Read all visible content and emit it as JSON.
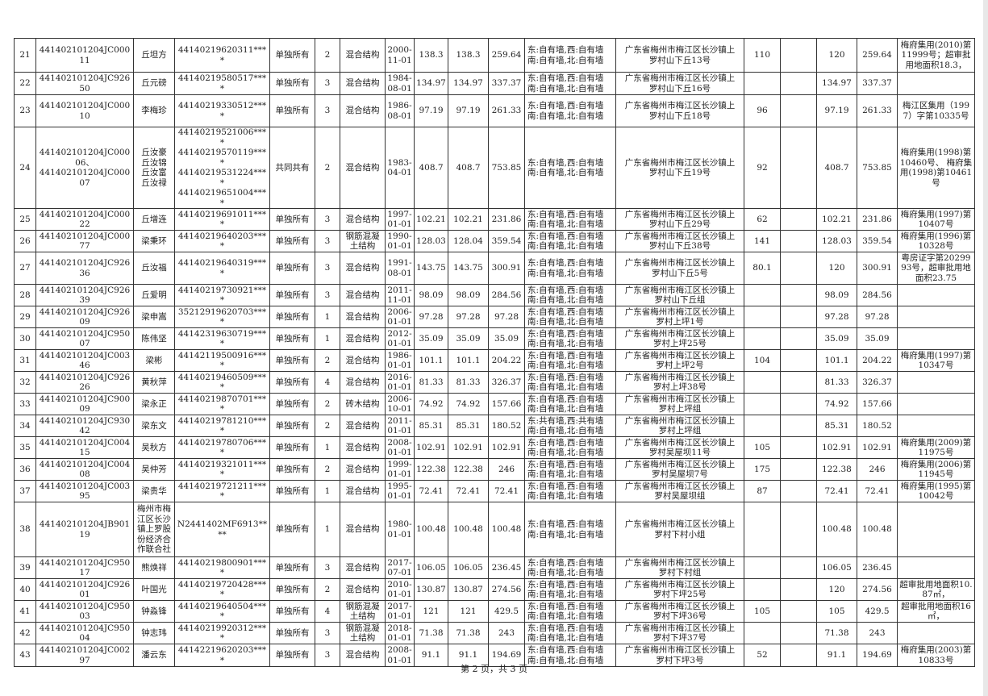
{
  "rows": [
    [
      "21",
      "441402101204JC00011",
      "丘坦方",
      "44140219620311****",
      "单独所有",
      "2",
      "混合结构",
      "2000-\n11-01",
      "138.3",
      "138.3",
      "259.64",
      "东:自有墙,西:自有墙\n南:自有墙,北:自有墙",
      "广东省梅州市梅江区长沙镇上\n罗村山下丘13号",
      "110",
      "",
      "120",
      "259.64",
      "梅府集用(2010)第11999号；超审批用地面积18.3，"
    ],
    [
      "22",
      "441402101204JC92650",
      "丘元磅",
      "44140219580517****",
      "单独所有",
      "3",
      "混合结构",
      "1984-\n08-01",
      "134.97",
      "134.97",
      "337.37",
      "东:自有墙,西:自有墙\n南:自有墙,北:自有墙",
      "广东省梅州市梅江区长沙镇上\n罗村山下丘16号",
      "",
      "",
      "134.97",
      "337.37",
      ""
    ],
    [
      "23",
      "441402101204JC00010",
      "李梅珍",
      "44140219330512****",
      "单独所有",
      "3",
      "混合结构",
      "1986-\n08-01",
      "97.19",
      "97.19",
      "261.33",
      "东:自有墙,西:自有墙\n南:自有墙,北:自有墙",
      "广东省梅州市梅江区长沙镇上\n罗村山下丘18号",
      "96",
      "",
      "97.19",
      "261.33",
      "梅江区集用（1997）字第10335号"
    ],
    [
      "24",
      "441402101204JC00006、\n441402101204JC00007",
      "丘汝豪\n丘汝锦\n丘汝富\n丘汝禄",
      "44140219521006****\n44140219570119****\n44140219531224****\n44140219651004****",
      "共同共有",
      "2",
      "混合结构",
      "1983-\n04-01",
      "408.7",
      "408.7",
      "753.85",
      "东:自有墙,西:自有墙\n南:自有墙,北:自有墙",
      "广东省梅州市梅江区长沙镇上\n罗村山下丘19号",
      "92",
      "",
      "408.7",
      "753.85",
      "梅府集用(1998)第10460号、 梅府集用(1998)第10461号"
    ],
    [
      "25",
      "441402101204JC00022",
      "丘增连",
      "44140219691011****",
      "单独所有",
      "3",
      "混合结构",
      "1997-\n01-01",
      "102.21",
      "102.21",
      "231.86",
      "东:自有墙,西:自有墙\n南:自有墙,北:自有墙",
      "广东省梅州市梅江区长沙镇上\n罗村山下丘29号",
      "62",
      "",
      "102.21",
      "231.86",
      "梅府集用(1997)第10407号"
    ],
    [
      "26",
      "441402101204JC00077",
      "梁秉环",
      "44140219640203****",
      "单独所有",
      "3",
      "钢筋混凝\n土结构",
      "1990-\n01-01",
      "128.03",
      "128.04",
      "359.54",
      "东:自有墙,西:自有墙\n南:自有墙,北:自有墙",
      "广东省梅州市梅江区长沙镇上\n罗村山下丘38号",
      "141",
      "",
      "128.03",
      "359.54",
      "梅府集用(1996)第10328号"
    ],
    [
      "27",
      "441402101204JC92636",
      "丘汝福",
      "44140219640319****",
      "单独所有",
      "3",
      "混合结构",
      "1991-\n08-01",
      "143.75",
      "143.75",
      "300.91",
      "东:自有墙,西:自有墙\n南:自有墙,北:自有墙",
      "广东省梅州市梅江区长沙镇上\n罗村山下丘5号",
      "80.1",
      "",
      "120",
      "300.91",
      "粤房证字第2029993号，超审批用地面积23.75"
    ],
    [
      "28",
      "441402101204JC92639",
      "丘爱明",
      "44140219730921****",
      "单独所有",
      "3",
      "混合结构",
      "2011-\n11-01",
      "98.09",
      "98.09",
      "284.56",
      "东:自有墙,西:自有墙\n南:自有墙,北:自有墙",
      "广东省梅州市梅江区长沙镇上\n罗村山下丘组",
      "",
      "",
      "98.09",
      "284.56",
      ""
    ],
    [
      "29",
      "441402101204JC92609",
      "梁申嵩",
      "35212919620703****",
      "单独所有",
      "1",
      "混合结构",
      "2006-\n01-01",
      "97.28",
      "97.28",
      "97.28",
      "东:自有墙,西:自有墙\n南:自有墙,北:自有墙",
      "广东省梅州市梅江区长沙镇上\n罗村上坪1号",
      "",
      "",
      "97.28",
      "97.28",
      ""
    ],
    [
      "30",
      "441402101204JC95007",
      "陈伟坚",
      "44142319630719****",
      "单独所有",
      "1",
      "混合结构",
      "2012-\n01-01",
      "35.09",
      "35.09",
      "35.09",
      "东:自有墙,西:自有墙\n南:自有墙,北:自有墙",
      "广东省梅州市梅江区长沙镇上\n罗村上坪25号",
      "",
      "",
      "35.09",
      "35.09",
      ""
    ],
    [
      "31",
      "441402101204JC00346",
      "梁彬",
      "44142119500916****",
      "单独所有",
      "2",
      "混合结构",
      "1986-\n01-01",
      "101.1",
      "101.1",
      "204.22",
      "东:自有墙,西:自有墙\n南:自有墙,北:自有墙",
      "广东省梅州市梅江区长沙镇上\n罗村上坪2号",
      "104",
      "",
      "101.1",
      "204.22",
      "梅府集用(1997)第10347号"
    ],
    [
      "32",
      "441402101204JC92626",
      "黄秋萍",
      "44140219460509****",
      "单独所有",
      "4",
      "混合结构",
      "2016-\n01-01",
      "81.33",
      "81.33",
      "326.37",
      "东:自有墙,西:自有墙\n南:自有墙,北:自有墙",
      "广东省梅州市梅江区长沙镇上\n罗村上坪38号",
      "",
      "",
      "81.33",
      "326.37",
      ""
    ],
    [
      "33",
      "441402101204JC90009",
      "梁永正",
      "44140219870701****",
      "单独所有",
      "2",
      "砖木结构",
      "2006-\n10-01",
      "74.92",
      "74.92",
      "157.66",
      "东:自有墙,西:自有墙\n南:自有墙,北:自有墙",
      "广东省梅州市梅江区长沙镇上\n罗村上坪组",
      "",
      "",
      "74.92",
      "157.66",
      ""
    ],
    [
      "34",
      "441402101204JC93042",
      "梁东文",
      "44140219781210****",
      "单独所有",
      "2",
      "混合结构",
      "2011-\n01-01",
      "85.31",
      "85.31",
      "180.52",
      "东:共有墙,西:共有墙\n南:自有墙,北:自有墙",
      "广东省梅州市梅江区长沙镇上\n罗村上坪组",
      "",
      "",
      "85.31",
      "180.52",
      ""
    ],
    [
      "35",
      "441402101204JC00415",
      "吴秋方",
      "44140219780706****",
      "单独所有",
      "1",
      "混合结构",
      "2008-\n01-01",
      "102.91",
      "102.91",
      "102.91",
      "东:自有墙,西:自有墙\n南:自有墙,北:自有墙",
      "广东省梅州市梅江区长沙镇上\n罗村吴屋坝11号",
      "105",
      "",
      "102.91",
      "102.91",
      "梅府集用(2009)第11975号"
    ],
    [
      "36",
      "441402101204JC00408",
      "吴仲芳",
      "44140219321011****",
      "单独所有",
      "2",
      "混合结构",
      "1999-\n01-01",
      "122.38",
      "122.38",
      "246",
      "东:自有墙,西:自有墙\n南:自有墙,北:自有墙",
      "广东省梅州市梅江区长沙镇上\n罗村吴屋坝7号",
      "175",
      "",
      "122.38",
      "246",
      "梅府集用(2006)第11945号"
    ],
    [
      "37",
      "441402101204JC00395",
      "梁贵华",
      "44140219721211****",
      "单独所有",
      "1",
      "混合结构",
      "1995-\n01-01",
      "72.41",
      "72.41",
      "72.41",
      "东:自有墙,西:自有墙\n南:自有墙,北:自有墙",
      "广东省梅州市梅江区长沙镇上\n罗村吴屋坝组",
      "87",
      "",
      "72.41",
      "72.41",
      "梅府集用(1995)第10042号"
    ],
    [
      "38",
      "441402101204JB90119",
      "梅州市梅\n江区长沙\n镇上罗股\n份经济合\n作联合社",
      "N2441402MF6913****",
      "单独所有",
      "1",
      "混合结构",
      "1980-\n01-01",
      "100.48",
      "100.48",
      "100.48",
      "东:自有墙,西:自有墙\n南:自有墙,北:自有墙",
      "广东省梅州市梅江区长沙镇上\n罗村下村小组",
      "",
      "",
      "100.48",
      "100.48",
      ""
    ],
    [
      "39",
      "441402101204JC95017",
      "熊焕祥",
      "44140219800901****",
      "单独所有",
      "3",
      "混合结构",
      "2017-\n07-01",
      "106.05",
      "106.05",
      "236.45",
      "东:自有墙,西:自有墙\n南:自有墙,北:自有墙",
      "广东省梅州市梅江区长沙镇上\n罗村下村组",
      "",
      "",
      "106.05",
      "236.45",
      ""
    ],
    [
      "40",
      "441402101204JC92601",
      "叶国光",
      "44140219720428****",
      "单独所有",
      "2",
      "混合结构",
      "2010-\n01-01",
      "130.87",
      "130.87",
      "274.56",
      "东:自有墙,西:自有墙\n南:自有墙,北:自有墙",
      "广东省梅州市梅江区长沙镇上\n罗村下坪25号",
      "",
      "",
      "120",
      "274.56",
      "超审批用地面积10.87㎡，"
    ],
    [
      "41",
      "441402101204JC95003",
      "钟淼锋",
      "44140219640504****",
      "单独所有",
      "4",
      "钢筋混凝\n土结构",
      "2017-\n01-01",
      "121",
      "121",
      "429.5",
      "东:自有墙,西:自有墙\n南:自有墙,北:自有墙",
      "广东省梅州市梅江区长沙镇上\n罗村下坪36号",
      "105",
      "",
      "105",
      "429.5",
      "超审批用地面积16㎡，"
    ],
    [
      "42",
      "441402101204JC95004",
      "钟志玮",
      "44140219920312****",
      "单独所有",
      "3",
      "钢筋混凝\n土结构",
      "2018-\n01-01",
      "71.38",
      "71.38",
      "243",
      "东:自有墙,西:自有墙\n南:自有墙,北:自有墙",
      "广东省梅州市梅江区长沙镇上\n罗村下坪37号",
      "",
      "",
      "71.38",
      "243",
      ""
    ],
    [
      "43",
      "441402101204JC00297",
      "潘云东",
      "44142219620203****",
      "单独所有",
      "3",
      "混合结构",
      "2008-\n01-01",
      "91.1",
      "91.1",
      "194.69",
      "东:自有墙,西:自有墙\n南:自有墙,北:自有墙",
      "广东省梅州市梅江区长沙镇上\n罗村下坪3号",
      "52",
      "",
      "91.1",
      "194.69",
      "梅府集用(2003)第10833号"
    ]
  ],
  "footer": {
    "page_label": "第 2 页，共 3 页"
  }
}
